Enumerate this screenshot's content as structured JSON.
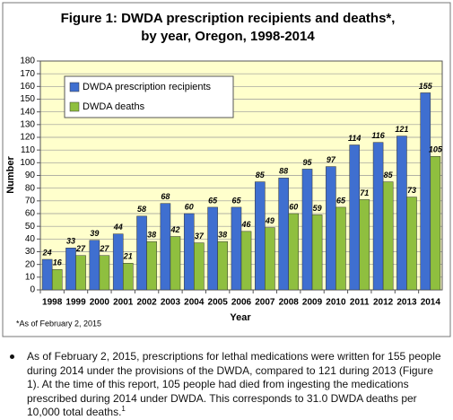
{
  "chart_data": {
    "type": "bar",
    "title": [
      "Figure 1: DWDA prescription recipients and deaths*,",
      "by year, Oregon, 1998-2014"
    ],
    "x_label": "Year",
    "y_label": "Number",
    "categories": [
      "1998",
      "1999",
      "2000",
      "2001",
      "2002",
      "2003",
      "2004",
      "2005",
      "2006",
      "2007",
      "2008",
      "2009",
      "2010",
      "2011",
      "2012",
      "2013",
      "2014"
    ],
    "series": [
      {
        "name": "DWDA prescription recipients",
        "color": "#3f6fd0",
        "values": [
          24,
          33,
          39,
          44,
          58,
          68,
          60,
          65,
          65,
          85,
          88,
          95,
          97,
          114,
          116,
          121,
          155
        ]
      },
      {
        "name": "DWDA deaths",
        "color": "#8fbf3f",
        "values": [
          16,
          27,
          27,
          21,
          38,
          42,
          37,
          38,
          46,
          49,
          60,
          59,
          65,
          71,
          85,
          73,
          105
        ]
      }
    ],
    "ylim": [
      0,
      180
    ],
    "yticks": [
      0,
      10,
      20,
      30,
      40,
      50,
      60,
      70,
      80,
      90,
      100,
      110,
      120,
      130,
      140,
      150,
      160,
      170,
      180
    ],
    "grid": true,
    "legend": "top-left",
    "background": "#ffffcc",
    "footnote": "*As of February 2, 2015"
  },
  "bullet_text": "As of February 2, 2015, prescriptions for lethal medications were written for 155 people during 2014 under the provisions of the DWDA, compared to 121 during 2013 (Figure 1). At the time of this report, 105 people had died from ingesting the medications prescribed during 2014 under DWDA. This corresponds to 31.0 DWDA deaths per 10,000 total deaths.",
  "bullet_sup": "1"
}
